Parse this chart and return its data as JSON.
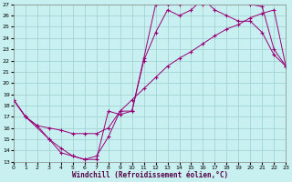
{
  "xlabel": "Windchill (Refroidissement éolien,°C)",
  "bg_color": "#c8f0f0",
  "grid_color": "#9ecece",
  "line_color": "#990077",
  "xmin": 0,
  "xmax": 23,
  "ymin": 13,
  "ymax": 27,
  "series1_x": [
    0,
    1,
    3,
    4,
    5,
    6,
    7,
    8,
    9,
    10,
    11,
    12,
    13,
    14,
    15,
    16,
    17,
    18,
    19,
    20,
    21,
    22,
    23
  ],
  "series1_y": [
    18.5,
    17.0,
    15.0,
    13.8,
    13.5,
    13.2,
    13.2,
    17.5,
    17.2,
    17.5,
    22.2,
    27.0,
    27.0,
    27.0,
    27.2,
    27.0,
    27.2,
    27.2,
    27.2,
    27.0,
    26.8,
    23.0,
    21.5
  ],
  "series2_x": [
    0,
    1,
    2,
    3,
    4,
    5,
    6,
    7,
    8,
    9,
    10,
    11,
    12,
    13,
    14,
    15,
    16,
    17,
    18,
    19,
    20,
    21,
    22,
    23
  ],
  "series2_y": [
    18.5,
    17.0,
    16.2,
    15.0,
    14.2,
    13.5,
    13.2,
    13.5,
    15.2,
    17.5,
    17.5,
    22.0,
    24.5,
    26.5,
    26.0,
    26.5,
    27.5,
    26.5,
    26.0,
    25.5,
    25.5,
    24.5,
    22.5,
    21.5
  ],
  "series3_x": [
    0,
    1,
    2,
    3,
    4,
    5,
    6,
    7,
    8,
    9,
    10,
    11,
    12,
    13,
    14,
    15,
    16,
    17,
    18,
    19,
    20,
    21,
    22,
    23
  ],
  "series3_y": [
    18.5,
    17.0,
    16.2,
    16.0,
    15.8,
    15.5,
    15.5,
    15.5,
    16.0,
    17.5,
    18.5,
    19.5,
    20.5,
    21.5,
    22.2,
    22.8,
    23.5,
    24.2,
    24.8,
    25.2,
    25.8,
    26.2,
    26.5,
    21.5
  ],
  "yticks": [
    13,
    14,
    15,
    16,
    17,
    18,
    19,
    20,
    21,
    22,
    23,
    24,
    25,
    26,
    27
  ],
  "xticks": [
    0,
    1,
    2,
    3,
    4,
    5,
    6,
    7,
    8,
    9,
    10,
    11,
    12,
    13,
    14,
    15,
    16,
    17,
    18,
    19,
    20,
    21,
    22,
    23
  ]
}
